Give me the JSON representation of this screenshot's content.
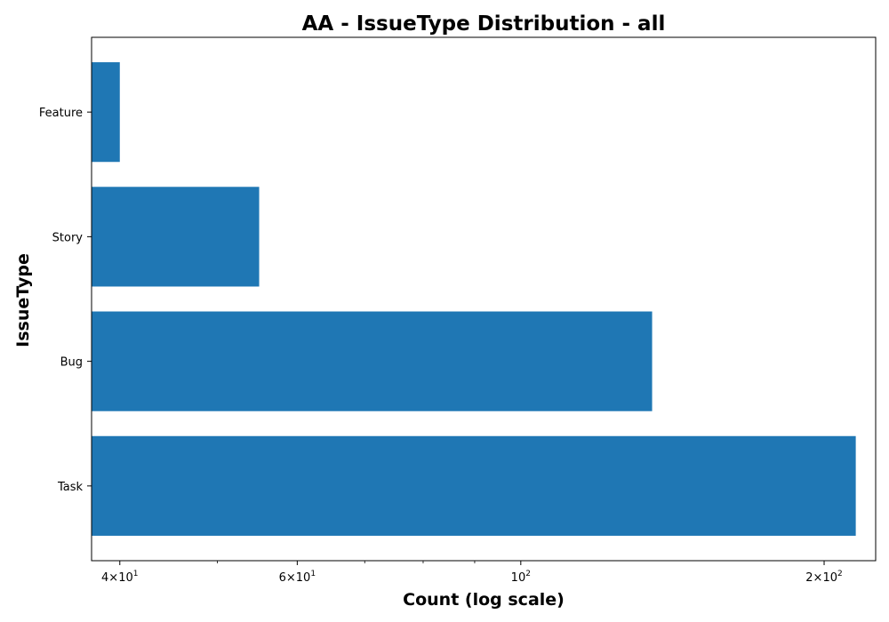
{
  "chart_data": {
    "type": "bar",
    "orientation": "horizontal",
    "title": "AA - IssueType Distribution - all",
    "xlabel": "Count (log scale)",
    "ylabel": "IssueType",
    "x_scale": "log",
    "xlim": [
      37.5,
      225
    ],
    "categories": [
      "Task",
      "Bug",
      "Story",
      "Feature"
    ],
    "values": [
      215,
      135,
      55,
      40
    ],
    "x_ticks": [
      {
        "value": 40,
        "mantissa": "4",
        "base": "10",
        "exp": "1"
      },
      {
        "value": 60,
        "mantissa": "6",
        "base": "10",
        "exp": "1"
      },
      {
        "value": 100,
        "mantissa": "",
        "base": "10",
        "exp": "2"
      },
      {
        "value": 200,
        "mantissa": "2",
        "base": "10",
        "exp": "2"
      }
    ],
    "x_minor_ticks": [
      50,
      70,
      80,
      90
    ],
    "bar_color": "#1f77b4",
    "grid": false,
    "legend": "none"
  }
}
